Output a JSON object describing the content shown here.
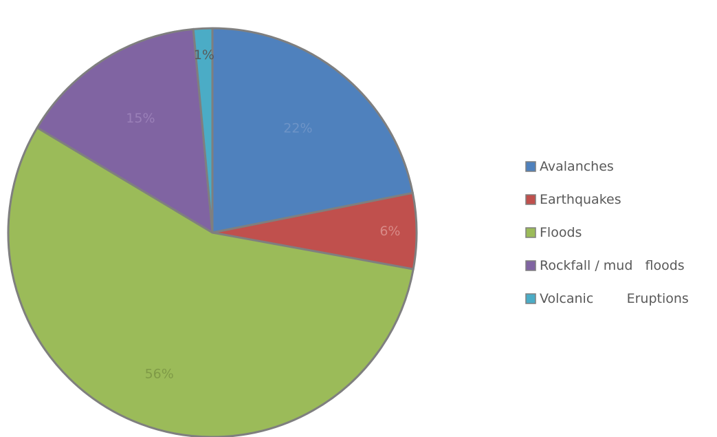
{
  "chart_data": {
    "type": "pie",
    "title": "",
    "legend_position": "right",
    "slices": [
      {
        "name": "Avalanches",
        "value": 22,
        "label": "22%",
        "color": "#4F81BD",
        "label_color": "#6E94C7"
      },
      {
        "name": "Earthquakes",
        "value": 6,
        "label": "6%",
        "color": "#C0504D",
        "label_color": "#D88A87"
      },
      {
        "name": "Floods",
        "value": 56,
        "label": "56%",
        "color": "#9BBB59",
        "label_color": "#7F9A47"
      },
      {
        "name": "Rockfall / mud   floods",
        "value": 15,
        "label": "15%",
        "color": "#8064A2",
        "label_color": "#9A80B8"
      },
      {
        "name": "Volcanic        Eruptions",
        "value": 1.5,
        "label": "1%",
        "color": "#4BACC6",
        "label_color": "#595959"
      }
    ]
  }
}
